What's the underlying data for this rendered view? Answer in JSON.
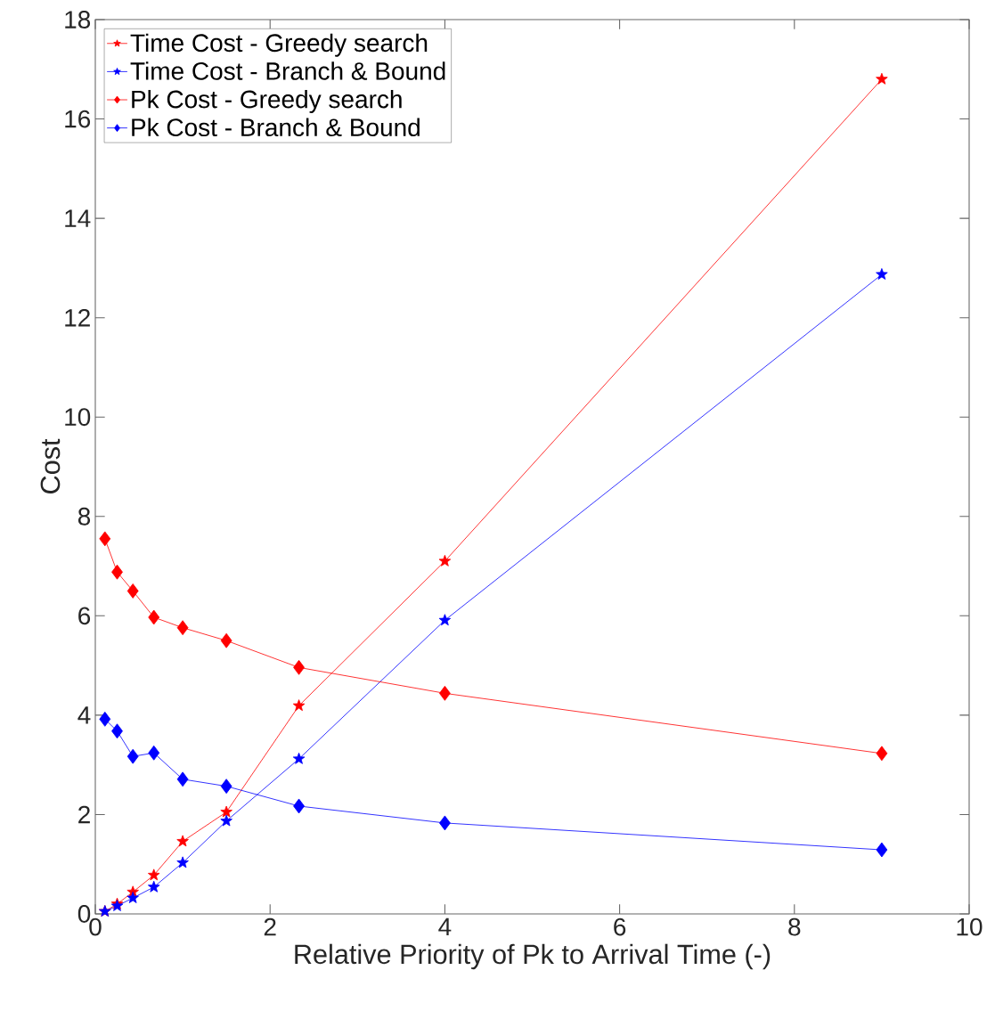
{
  "chart_data": {
    "type": "line",
    "xlabel": "Relative Priority of Pk to Arrival Time (-)",
    "ylabel": "Cost",
    "xlim": [
      0,
      10
    ],
    "ylim": [
      0,
      18
    ],
    "xticks": [
      0,
      2,
      4,
      6,
      8,
      10
    ],
    "yticks": [
      0,
      2,
      4,
      6,
      8,
      10,
      12,
      14,
      16,
      18
    ],
    "x": [
      0.11,
      0.25,
      0.43,
      0.67,
      1,
      1.5,
      2.33,
      4,
      9
    ],
    "grid": false,
    "legend": "top left",
    "line_style": "solid",
    "series": [
      {
        "name": "Time Cost - Greedy search",
        "color": "#ff0000",
        "marker": "star",
        "values": [
          0.05,
          0.2,
          0.44,
          0.78,
          1.46,
          2.05,
          4.19,
          7.1,
          16.8
        ]
      },
      {
        "name": "Time Cost - Branch & Bound",
        "color": "#0000ff",
        "marker": "star",
        "values": [
          0.05,
          0.16,
          0.32,
          0.54,
          1.03,
          1.87,
          3.12,
          5.91,
          12.87
        ]
      },
      {
        "name": "Pk Cost - Greedy search",
        "color": "#ff0000",
        "marker": "diamond",
        "values": [
          7.55,
          6.88,
          6.5,
          5.97,
          5.76,
          5.5,
          4.96,
          4.44,
          3.23
        ]
      },
      {
        "name": "Pk Cost - Branch & Bound",
        "color": "#0000ff",
        "marker": "diamond",
        "values": [
          3.92,
          3.68,
          3.17,
          3.24,
          2.71,
          2.57,
          2.17,
          1.83,
          1.29
        ]
      }
    ]
  }
}
